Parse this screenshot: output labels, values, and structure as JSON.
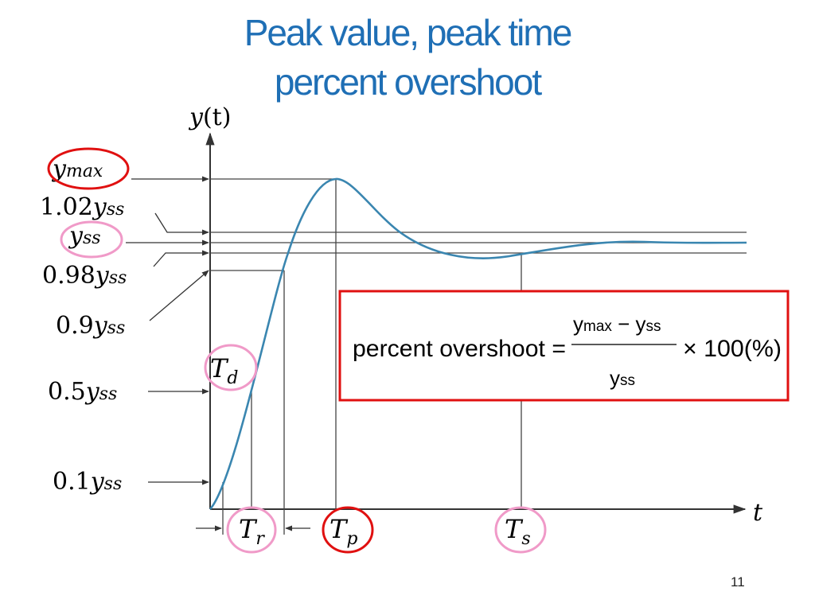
{
  "slide": {
    "title_line1": "Peak value, peak time",
    "title_line2": "percent overshoot",
    "page_number": "11"
  },
  "axes": {
    "y_label_var": "y",
    "y_label_arg": "(t)",
    "x_label": "t"
  },
  "levels": {
    "ymax": {
      "base": "y",
      "sub": "max"
    },
    "upper_band": {
      "coef": "1.02",
      "base": "y",
      "sub": "ss"
    },
    "steady": {
      "base": "y",
      "sub": "ss"
    },
    "lower_band": {
      "coef": "0.98",
      "base": "y",
      "sub": "ss"
    },
    "ninety": {
      "coef": "0.9",
      "base": "y",
      "sub": "ss"
    },
    "fifty": {
      "coef": "0.5",
      "base": "y",
      "sub": "ss"
    },
    "ten": {
      "coef": "0.1",
      "base": "y",
      "sub": "ss"
    }
  },
  "times": {
    "delay": {
      "base": "T",
      "sub": "d"
    },
    "rise": {
      "base": "T",
      "sub": "r"
    },
    "peak": {
      "base": "T",
      "sub": "p"
    },
    "settling": {
      "base": "T",
      "sub": "s"
    }
  },
  "formula": {
    "lhs": "percent overshoot =",
    "num_base1": "y",
    "num_sub1": "max",
    "num_op": " − ",
    "num_base2": "y",
    "num_sub2": "ss",
    "den_base": "y",
    "den_sub": "ss",
    "factor": "× 100(%)"
  },
  "colors": {
    "curve": "#3a86b0",
    "title": "#1f6fb5",
    "red_highlight": "#e01010",
    "pink_highlight": "#f09ac8"
  }
}
